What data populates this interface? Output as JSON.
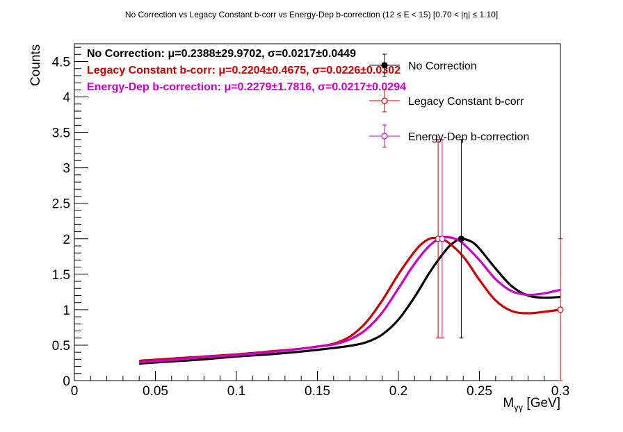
{
  "chart_data": {
    "type": "line",
    "title": "No Correction vs Legacy Constant b-corr vs Energy-Dep b-correction   (12 ≤ E < 15)   [0.70 < |η| ≤ 1.10]",
    "xlabel": "Mγγ [GeV]",
    "xlabel_main": "M",
    "xlabel_sub": "γγ",
    "xlabel_unit": " [GeV]",
    "ylabel": "Counts",
    "xlim": [
      0,
      0.3
    ],
    "ylim": [
      0,
      4.75
    ],
    "x_ticks": [
      0,
      0.05,
      0.1,
      0.15,
      0.2,
      0.25,
      0.3
    ],
    "x_tick_labels": [
      "0",
      "0.05",
      "0.1",
      "0.15",
      "0.2",
      "0.25",
      "0.3"
    ],
    "y_ticks": [
      0,
      0.5,
      1,
      1.5,
      2,
      2.5,
      3,
      3.5,
      4,
      4.5
    ],
    "y_tick_labels": [
      "0",
      "0.5",
      "1",
      "1.5",
      "2",
      "2.5",
      "3",
      "3.5",
      "4",
      "4.5"
    ],
    "grid": false,
    "legend_position": "top-right",
    "series": [
      {
        "name": "No Correction",
        "color": "#000000",
        "marker": "filled-circle",
        "fit_label": "No Correction:",
        "fit_values": "μ=0.2388±29.9702, σ=0.0217±0.0449",
        "points": [
          {
            "x": 0.2388,
            "y": 2.0,
            "ylow": 0.6,
            "yhigh": 3.4
          }
        ],
        "curve": [
          [
            0.04,
            0.24
          ],
          [
            0.06,
            0.27
          ],
          [
            0.08,
            0.3
          ],
          [
            0.1,
            0.34
          ],
          [
            0.12,
            0.37
          ],
          [
            0.14,
            0.41
          ],
          [
            0.16,
            0.46
          ],
          [
            0.17,
            0.49
          ],
          [
            0.18,
            0.54
          ],
          [
            0.19,
            0.65
          ],
          [
            0.2,
            0.86
          ],
          [
            0.21,
            1.18
          ],
          [
            0.22,
            1.55
          ],
          [
            0.23,
            1.86
          ],
          [
            0.235,
            1.96
          ],
          [
            0.2388,
            2.0
          ],
          [
            0.245,
            1.96
          ],
          [
            0.25,
            1.86
          ],
          [
            0.26,
            1.58
          ],
          [
            0.27,
            1.33
          ],
          [
            0.28,
            1.2
          ],
          [
            0.29,
            1.17
          ],
          [
            0.3,
            1.18
          ]
        ]
      },
      {
        "name": "Legacy Constant b-corr",
        "color": "#cc0000",
        "marker": "open-circle",
        "fit_label": "Legacy Constant b-corr:",
        "fit_values": "μ=0.2204±0.4675, σ=0.0226±0.0302",
        "points": [
          {
            "x": 0.2245,
            "y": 2.0,
            "ylow": 0.6,
            "yhigh": 3.4
          },
          {
            "x": 0.3,
            "y": 1.0,
            "ylow": 0.0,
            "yhigh": 2.0
          }
        ],
        "curve": [
          [
            0.04,
            0.28
          ],
          [
            0.06,
            0.31
          ],
          [
            0.08,
            0.34
          ],
          [
            0.1,
            0.37
          ],
          [
            0.12,
            0.41
          ],
          [
            0.14,
            0.45
          ],
          [
            0.15,
            0.48
          ],
          [
            0.16,
            0.52
          ],
          [
            0.17,
            0.62
          ],
          [
            0.18,
            0.82
          ],
          [
            0.19,
            1.13
          ],
          [
            0.2,
            1.5
          ],
          [
            0.21,
            1.82
          ],
          [
            0.215,
            1.94
          ],
          [
            0.2204,
            2.01
          ],
          [
            0.225,
            2.0
          ],
          [
            0.23,
            1.96
          ],
          [
            0.24,
            1.75
          ],
          [
            0.25,
            1.42
          ],
          [
            0.26,
            1.13
          ],
          [
            0.27,
            0.98
          ],
          [
            0.28,
            0.95
          ],
          [
            0.29,
            0.97
          ],
          [
            0.3,
            1.0
          ]
        ]
      },
      {
        "name": "Energy-Dep b-correction",
        "color": "#cc00cc",
        "marker": "open-circle",
        "fit_label": "Energy-Dep b-correction:",
        "fit_values": "μ=0.2279±1.7816, σ=0.0217±0.0294",
        "points": [
          {
            "x": 0.227,
            "y": 2.0,
            "ylow": 0.6,
            "yhigh": 3.4
          }
        ],
        "curve": [
          [
            0.04,
            0.26
          ],
          [
            0.06,
            0.29
          ],
          [
            0.08,
            0.33
          ],
          [
            0.1,
            0.36
          ],
          [
            0.12,
            0.4
          ],
          [
            0.14,
            0.45
          ],
          [
            0.15,
            0.48
          ],
          [
            0.16,
            0.51
          ],
          [
            0.17,
            0.58
          ],
          [
            0.18,
            0.72
          ],
          [
            0.19,
            0.96
          ],
          [
            0.2,
            1.3
          ],
          [
            0.21,
            1.65
          ],
          [
            0.22,
            1.92
          ],
          [
            0.2279,
            2.02
          ],
          [
            0.235,
            2.0
          ],
          [
            0.24,
            1.93
          ],
          [
            0.25,
            1.7
          ],
          [
            0.26,
            1.43
          ],
          [
            0.27,
            1.26
          ],
          [
            0.28,
            1.21
          ],
          [
            0.29,
            1.23
          ],
          [
            0.3,
            1.28
          ]
        ]
      }
    ]
  }
}
